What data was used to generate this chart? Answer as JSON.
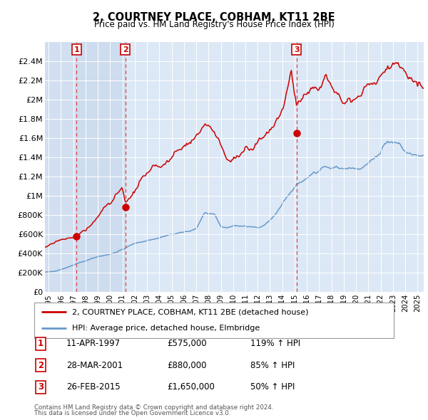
{
  "title": "2, COURTNEY PLACE, COBHAM, KT11 2BE",
  "subtitle": "Price paid vs. HM Land Registry's House Price Index (HPI)",
  "footer1": "Contains HM Land Registry data © Crown copyright and database right 2024.",
  "footer2": "This data is licensed under the Open Government Licence v3.0.",
  "legend_line1": "2, COURTNEY PLACE, COBHAM, KT11 2BE (detached house)",
  "legend_line2": "HPI: Average price, detached house, Elmbridge",
  "transactions": [
    {
      "num": 1,
      "date": "11-APR-1997",
      "price": 575000,
      "hpi_pct": "119%",
      "x_year": 1997.28
    },
    {
      "num": 2,
      "date": "28-MAR-2001",
      "price": 880000,
      "hpi_pct": "85%",
      "x_year": 2001.24
    },
    {
      "num": 3,
      "date": "26-FEB-2015",
      "price": 1650000,
      "hpi_pct": "50%",
      "x_year": 2015.16
    }
  ],
  "red_color": "#cc0000",
  "blue_color": "#6699cc",
  "dashed_color": "#dd4444",
  "background_color": "#dce8f5",
  "shade_color": "#c8d8ec",
  "ylim": [
    0,
    2600000
  ],
  "xlim_start": 1994.7,
  "xlim_end": 2025.5,
  "yticks": [
    0,
    200000,
    400000,
    600000,
    800000,
    1000000,
    1200000,
    1400000,
    1600000,
    1800000,
    2000000,
    2200000,
    2400000
  ],
  "ytick_labels": [
    "£0",
    "£200K",
    "£400K",
    "£600K",
    "£800K",
    "£1M",
    "£1.2M",
    "£1.4M",
    "£1.6M",
    "£1.8M",
    "£2M",
    "£2.2M",
    "£2.4M"
  ]
}
